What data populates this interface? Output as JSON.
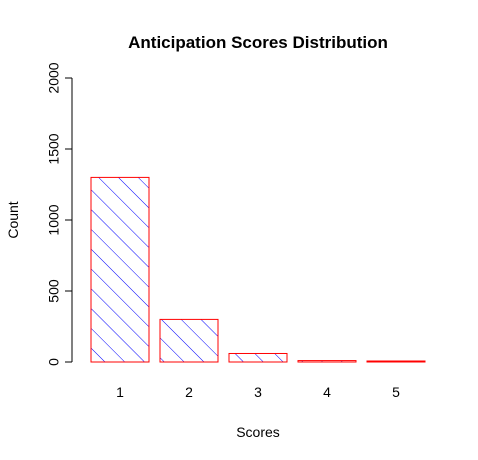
{
  "colors": {
    "bar_border": "#ff0000",
    "hatch": "#0000ff",
    "axis": "#000000",
    "background": "#ffffff"
  },
  "chart_data": {
    "type": "bar",
    "title": "Anticipation Scores Distribution",
    "xlabel": "Scores",
    "ylabel": "Count",
    "categories": [
      "1",
      "2",
      "3",
      "4",
      "5"
    ],
    "values": [
      1300,
      300,
      60,
      10,
      3
    ],
    "ylim": [
      0,
      2000
    ],
    "yticks": [
      "0",
      "500",
      "1000",
      "1500",
      "2000"
    ],
    "ytick_values": [
      0,
      500,
      1000,
      1500,
      2000
    ],
    "grid": false,
    "bar_fill": "diagonal hatch",
    "legend": "none"
  }
}
